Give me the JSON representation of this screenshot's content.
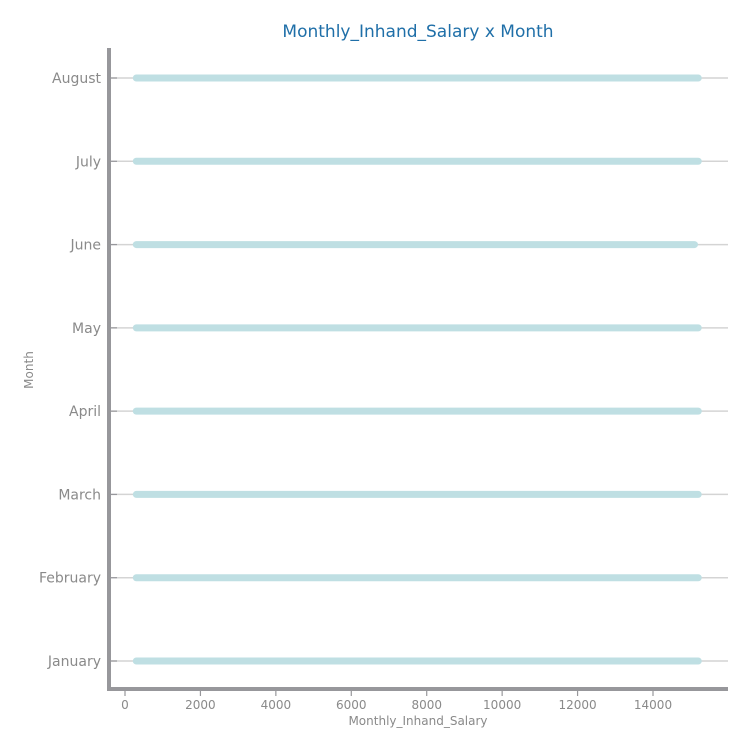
{
  "chart_data": {
    "type": "scatter",
    "title": "Monthly_Inhand_Salary x Month",
    "xlabel": "Monthly_Inhand_Salary",
    "ylabel": "Month",
    "xlim": [
      -350,
      16000
    ],
    "x_ticks": [
      0,
      2000,
      4000,
      6000,
      8000,
      10000,
      12000,
      14000
    ],
    "categories": [
      "January",
      "February",
      "March",
      "April",
      "May",
      "June",
      "July",
      "August"
    ],
    "series": [
      {
        "category": "January",
        "min": 300,
        "max": 15200
      },
      {
        "category": "February",
        "min": 300,
        "max": 15200
      },
      {
        "category": "March",
        "min": 300,
        "max": 15200
      },
      {
        "category": "April",
        "min": 300,
        "max": 15200
      },
      {
        "category": "May",
        "min": 300,
        "max": 15200
      },
      {
        "category": "June",
        "min": 300,
        "max": 15100
      },
      {
        "category": "July",
        "min": 300,
        "max": 15200
      },
      {
        "category": "August",
        "min": 300,
        "max": 15200
      }
    ],
    "grid": "horizontal",
    "colors": {
      "points": "#bfdfe3",
      "axis": "#97979b",
      "grid": "#d4d4d4",
      "title": "#1f6fa8",
      "text": "#8a8a8a"
    }
  }
}
